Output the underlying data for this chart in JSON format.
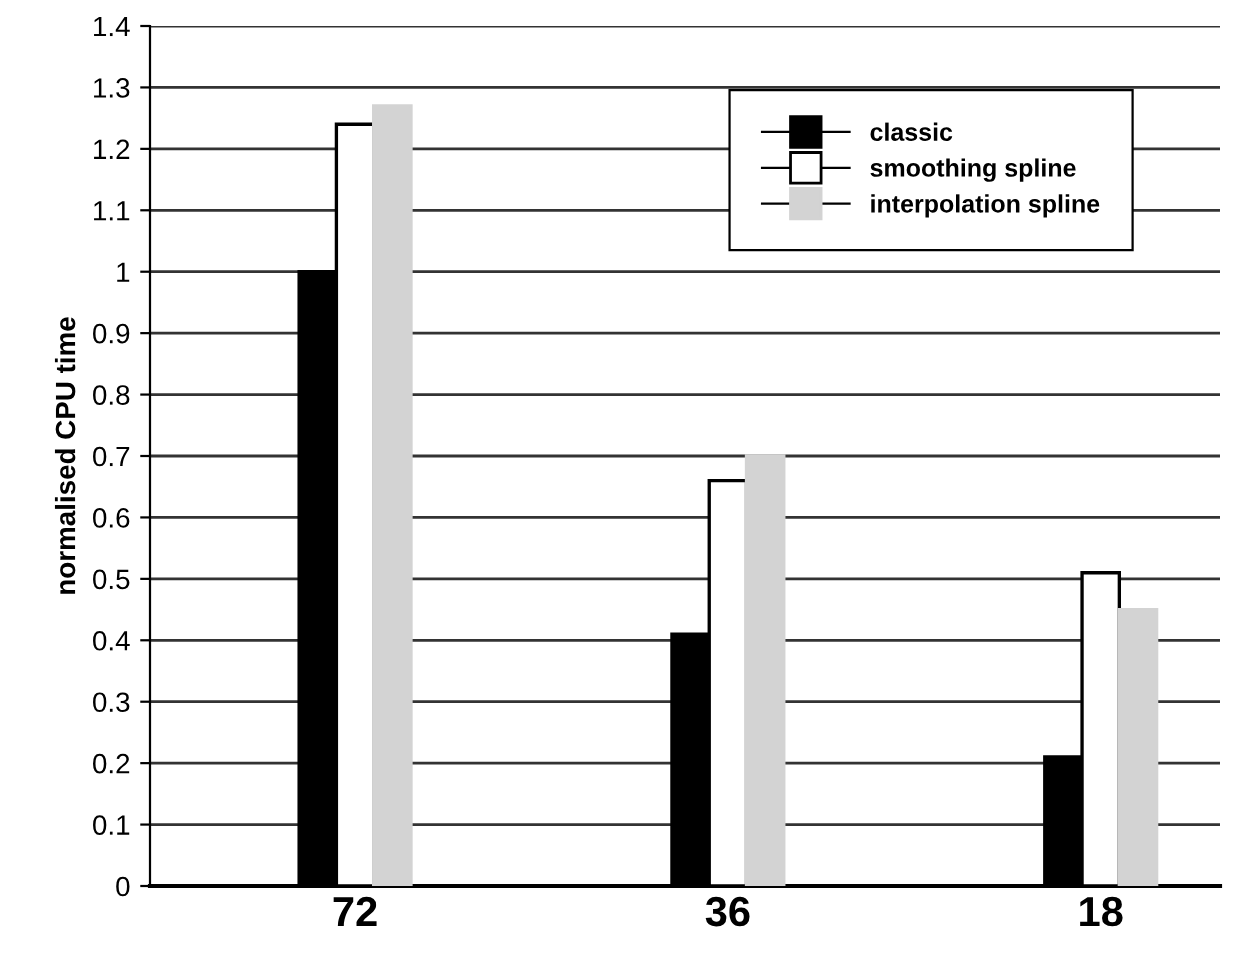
{
  "chart_data": {
    "type": "bar",
    "ylabel": "normalised CPU time",
    "categories": [
      "72",
      "36",
      "18"
    ],
    "series": [
      {
        "name": "classic",
        "color": "#000000",
        "values": [
          1.0,
          0.41,
          0.21
        ]
      },
      {
        "name": "smoothing spline",
        "color": "#ffffff",
        "values": [
          1.24,
          0.66,
          0.51
        ]
      },
      {
        "name": "interpolation spline",
        "color": "#d3d3d3",
        "values": [
          1.27,
          0.7,
          0.45
        ]
      }
    ],
    "ylim": [
      0,
      1.4
    ],
    "yticks": [
      0,
      0.1,
      0.2,
      0.3,
      0.4,
      0.5,
      0.6,
      0.7,
      0.8,
      0.9,
      1,
      1.1,
      1.2,
      1.3,
      1.4
    ],
    "grid": "y",
    "legend": "top right"
  }
}
